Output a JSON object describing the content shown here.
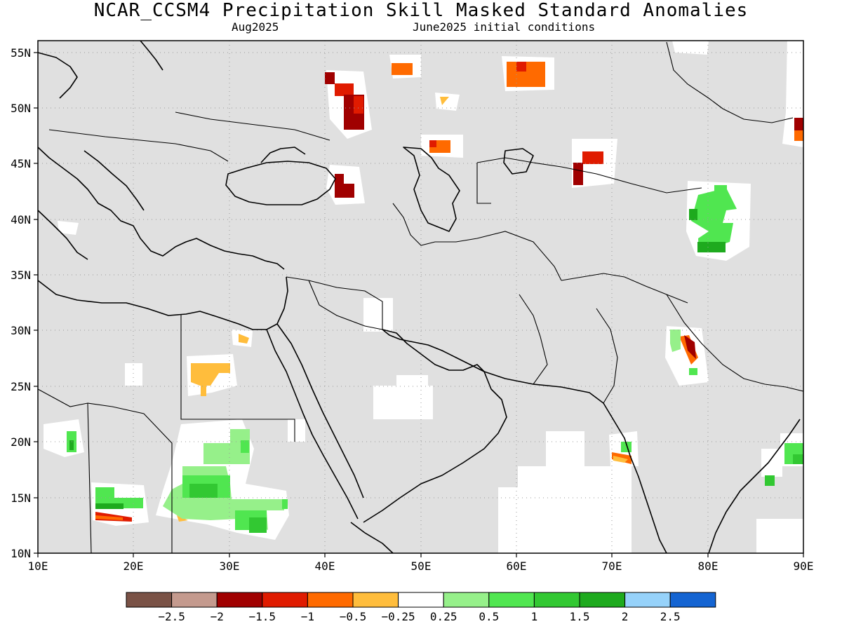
{
  "title": "NCAR_CCSM4 Precipitation Skill Masked Standard Anomalies",
  "subtitle_left": "Aug2025",
  "subtitle_right": "June2025 initial conditions",
  "map": {
    "lon_range": [
      10,
      90
    ],
    "lat_range": [
      10,
      56
    ],
    "lon_ticks": [
      "10E",
      "20E",
      "30E",
      "40E",
      "50E",
      "60E",
      "70E",
      "80E",
      "90E"
    ],
    "lat_ticks": [
      "55N",
      "50N",
      "45N",
      "40N",
      "35N",
      "30N",
      "25N",
      "20N",
      "15N",
      "10N"
    ],
    "background_color": "#e0e0e0",
    "coastline_color": "#000000"
  },
  "colorbar": {
    "colors": [
      "#7a5246",
      "#c49a8e",
      "#a00000",
      "#e01b00",
      "#ff6a00",
      "#ffbd3c",
      "#ffffff",
      "#96f08a",
      "#50e650",
      "#32c832",
      "#1eaa1e",
      "#96d2fa",
      "#1464d2"
    ],
    "labels": [
      "−2.5",
      "−2",
      "−1.5",
      "−1",
      "−0.5",
      "−0.25",
      "0.25",
      "0.5",
      "1",
      "1.5",
      "2",
      "2.5"
    ]
  }
}
